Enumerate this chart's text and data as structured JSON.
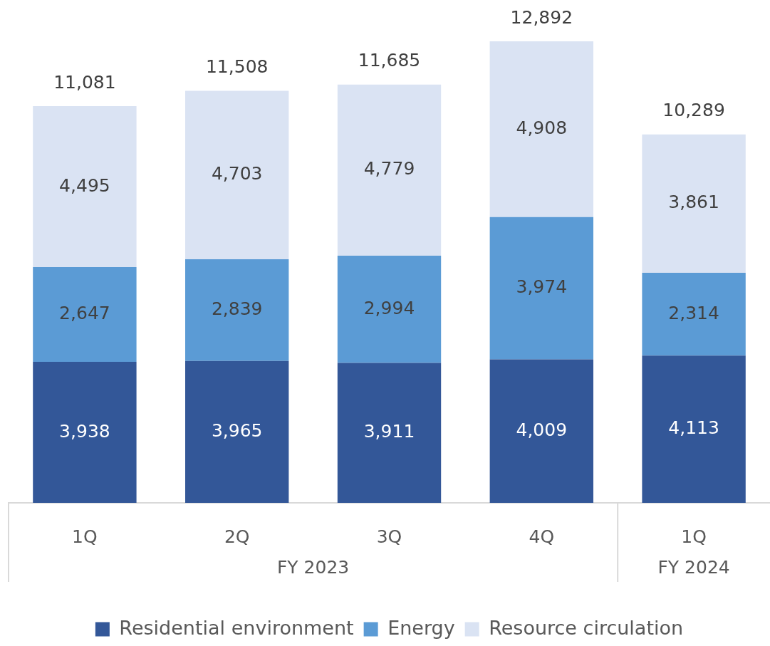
{
  "chart_data": {
    "type": "bar",
    "categories": [
      "1Q",
      "2Q",
      "3Q",
      "4Q",
      "1Q"
    ],
    "stacked": true,
    "series": [
      {
        "name": "Residential environment",
        "color": "#335798",
        "values": [
          3938,
          3965,
          3911,
          4009,
          4113
        ],
        "value_labels": [
          "3,938",
          "3,965",
          "3,911",
          "4,009",
          "4,113"
        ]
      },
      {
        "name": "Energy",
        "color": "#5b9bd5",
        "values": [
          2647,
          2839,
          2994,
          3974,
          2314
        ],
        "value_labels": [
          "2,647",
          "2,839",
          "2,994",
          "3,974",
          "2,314"
        ]
      },
      {
        "name": "Resource circulation",
        "color": "#dae3f3",
        "values": [
          4495,
          4703,
          4779,
          4908,
          3861
        ],
        "value_labels": [
          "4,495",
          "4,703",
          "4,779",
          "4,908",
          "3,861"
        ]
      }
    ],
    "totals": [
      "11,081",
      "11,508",
      "11,685",
      "12,892",
      "10,289"
    ],
    "legend": "bottom",
    "grid": false,
    "tick_labels": "x",
    "annotations": [
      "FY 2023",
      "FY 2024"
    ]
  }
}
